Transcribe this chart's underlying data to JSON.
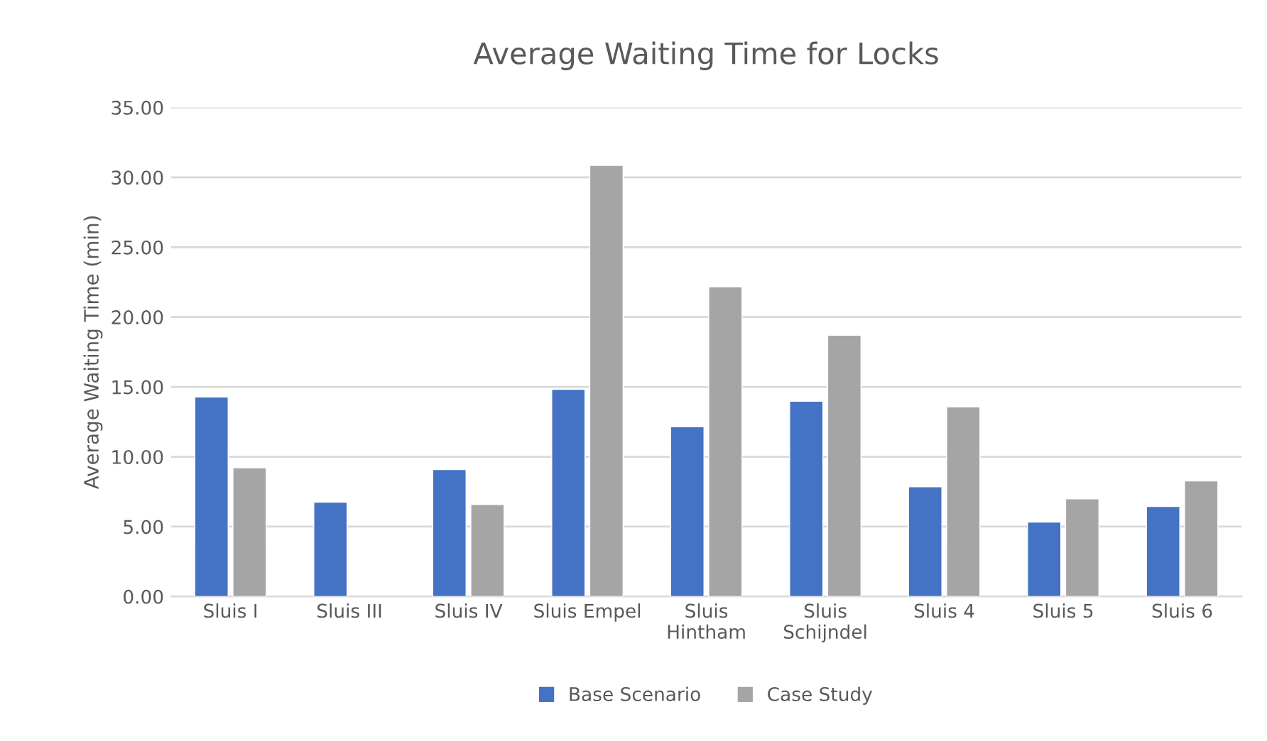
{
  "chart_data": {
    "type": "bar",
    "title": "Average Waiting Time for Locks",
    "ylabel": "Average Waiting Time (min)",
    "categories": [
      "Sluis I",
      "Sluis III",
      "Sluis IV",
      "Sluis Empel",
      "Sluis Hintham",
      "Sluis Schijndel",
      "Sluis 4",
      "Sluis 5",
      "Sluis 6"
    ],
    "series": [
      {
        "name": "Base Scenario",
        "color": "#4472c4",
        "values": [
          14.28,
          6.75,
          9.08,
          14.82,
          12.15,
          13.97,
          7.86,
          5.33,
          6.45
        ]
      },
      {
        "name": "Case Study",
        "color": "#a5a5a5",
        "values": [
          9.21,
          null,
          6.58,
          30.85,
          22.17,
          18.7,
          13.57,
          6.99,
          8.27
        ]
      }
    ],
    "ylim": [
      0,
      35
    ],
    "yticks": [
      {
        "value": 0,
        "label": "0.00"
      },
      {
        "value": 5,
        "label": "5.00"
      },
      {
        "value": 10,
        "label": "10.00"
      },
      {
        "value": 15,
        "label": "15.00"
      },
      {
        "value": 20,
        "label": "20.00"
      },
      {
        "value": 25,
        "label": "25.00"
      },
      {
        "value": 30,
        "label": "30.00"
      },
      {
        "value": 35,
        "label": "35.00"
      }
    ],
    "grid": "y",
    "legend": "bottom"
  }
}
